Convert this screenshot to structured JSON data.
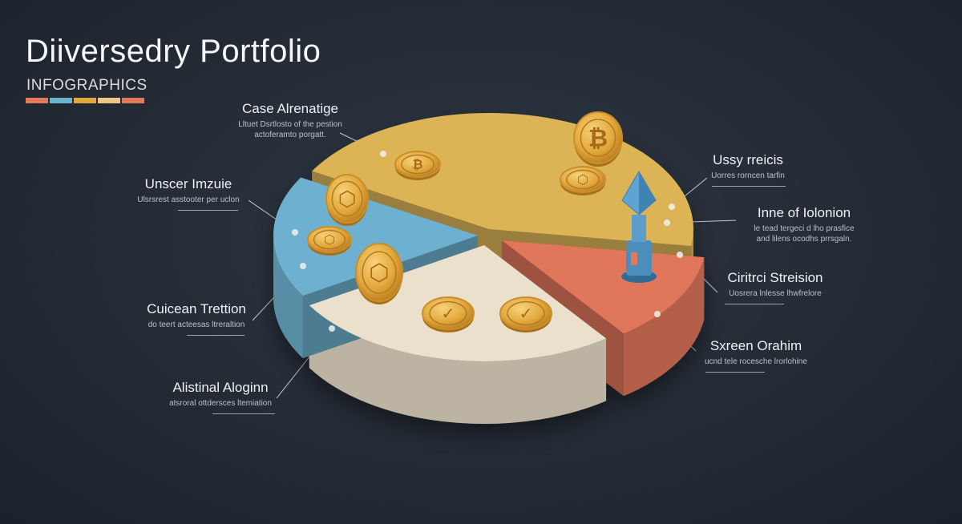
{
  "header": {
    "title": "Diiversedry Portfolio",
    "subtitle": "INFOGRAPHICS",
    "swatch_colors": [
      "#e07a5a",
      "#6ab4cc",
      "#e3a83c",
      "#ecc98a",
      "#e07a5a"
    ]
  },
  "chart_data": {
    "type": "pie",
    "style": "3d-exploded",
    "slices": [
      {
        "color": "#dcb456",
        "share": 44
      },
      {
        "color": "#e0775a",
        "share": 12.5
      },
      {
        "color": "#ebe0cb",
        "share": 26.5
      },
      {
        "color": "#6eb0cf",
        "share": 17
      }
    ]
  },
  "labels": [
    {
      "heading": "Case Alrenatige",
      "desc": [
        "Lltuet Dsrtlosto of the pestion",
        "actoferamto porgatt."
      ]
    },
    {
      "heading": "Unscer Imzuie",
      "desc": [
        "Ulsrsrest asstooter per uclon"
      ]
    },
    {
      "heading": "Cuicean Trettion",
      "desc": [
        "do teert acteesas ltreraltion"
      ]
    },
    {
      "heading": "Alistinal Aloginn",
      "desc": [
        "atsroral ottdersces ltemiation"
      ]
    },
    {
      "heading": "Ussy rreicis",
      "desc": [
        "Uorres rorncen tarfin"
      ]
    },
    {
      "heading": "Inne of Iolonion",
      "desc": [
        "le tead tergeci d lho prasfice",
        "and lilens ocodhs prrsgaln."
      ]
    },
    {
      "heading": "Ciritrci Streision",
      "desc": [
        "Uosrera lnlesse lhwfrelore"
      ]
    },
    {
      "heading": "Sxreen Orahim",
      "desc": [
        "ucnd tele rocesche lrorlohine"
      ]
    }
  ],
  "icons": [
    "coin-icon",
    "bitcoin-icon",
    "tower-icon"
  ]
}
